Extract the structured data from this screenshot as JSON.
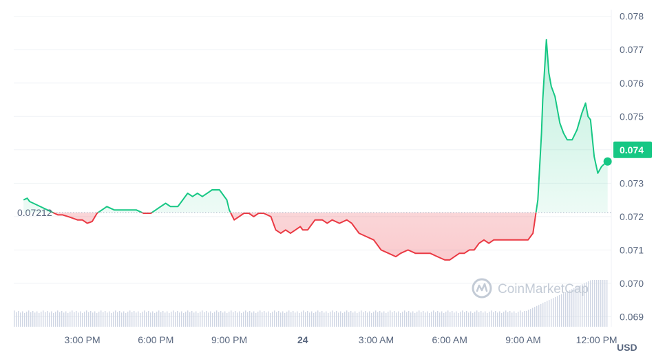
{
  "chart_data": {
    "type": "line",
    "currency": "USD",
    "open_price": 0.07212,
    "open_price_label": "0.07212",
    "current_price": 0.074,
    "current_price_label": "0.074",
    "ylim": [
      0.0687,
      0.0782
    ],
    "y_ticks": [
      "0.078",
      "0.077",
      "0.076",
      "0.075",
      "0.074",
      "0.073",
      "0.072",
      "0.071",
      "0.070",
      "0.069"
    ],
    "y_tick_values": [
      0.078,
      0.077,
      0.076,
      0.075,
      0.074,
      0.073,
      0.072,
      0.071,
      0.07,
      0.069
    ],
    "x_ticks": [
      {
        "label": "3:00 PM",
        "hour": 15,
        "bold": false
      },
      {
        "label": "6:00 PM",
        "hour": 18,
        "bold": false
      },
      {
        "label": "9:00 PM",
        "hour": 21,
        "bold": false
      },
      {
        "label": "24",
        "hour": 24,
        "bold": true
      },
      {
        "label": "3:00 AM",
        "hour": 27,
        "bold": false
      },
      {
        "label": "6:00 AM",
        "hour": 30,
        "bold": false
      },
      {
        "label": "9:00 AM",
        "hour": 33,
        "bold": false
      },
      {
        "label": "12:00 PM",
        "hour": 36,
        "bold": false
      }
    ],
    "xlim_hours": [
      12.2,
      36.6
    ],
    "colors": {
      "up": "#16c784",
      "down": "#ea3943",
      "axis_text": "#58667e",
      "grid": "#eff2f5",
      "volume": "#cfd6e4"
    },
    "series": [
      {
        "x_hours": [
          12.6,
          12.75,
          12.85,
          13.0,
          14.0,
          14.2,
          14.5,
          14.8,
          15.0,
          15.2,
          15.4,
          15.6,
          15.8,
          16.0,
          16.3,
          16.6,
          16.9,
          17.2,
          17.5,
          17.8,
          18.0,
          18.2,
          18.4,
          18.6,
          18.9,
          19.1,
          19.3,
          19.5,
          19.7,
          19.9,
          20.1,
          20.3,
          20.6,
          20.9,
          21.0,
          21.2,
          21.4,
          21.6,
          21.8,
          22.0,
          22.2,
          22.4,
          22.7,
          22.9,
          23.1,
          23.3,
          23.5,
          23.7,
          23.9,
          24.0,
          24.2,
          24.5,
          24.8,
          25.0,
          25.2,
          25.5,
          25.8,
          26.0,
          26.3,
          26.6,
          26.9,
          27.2,
          27.5,
          27.8,
          28.0,
          28.3,
          28.6,
          28.9,
          29.2,
          29.5,
          29.8,
          30.0,
          30.2,
          30.4,
          30.6,
          30.8,
          31.0,
          31.2,
          31.4,
          31.6,
          31.8,
          32.0,
          32.2,
          32.5,
          32.8,
          33.0,
          33.2,
          33.4,
          33.6,
          33.75,
          33.8,
          33.95,
          34.05,
          34.15,
          34.3,
          34.5,
          34.65,
          34.8,
          35.0,
          35.2,
          35.4,
          35.55,
          35.65,
          35.75,
          35.9,
          36.05,
          36.2,
          36.35,
          36.45
        ],
        "y": [
          0.0725,
          0.07255,
          0.07245,
          0.0724,
          0.07205,
          0.07205,
          0.07198,
          0.0719,
          0.0719,
          0.0718,
          0.07185,
          0.0721,
          0.0722,
          0.0723,
          0.0722,
          0.0722,
          0.0722,
          0.0722,
          0.0721,
          0.0721,
          0.0722,
          0.0723,
          0.0724,
          0.0723,
          0.0723,
          0.0725,
          0.0727,
          0.0726,
          0.0727,
          0.0726,
          0.0727,
          0.0728,
          0.0728,
          0.0725,
          0.0722,
          0.0719,
          0.072,
          0.0721,
          0.0721,
          0.072,
          0.0721,
          0.0721,
          0.072,
          0.0716,
          0.0715,
          0.0716,
          0.0715,
          0.0716,
          0.0717,
          0.0716,
          0.0716,
          0.0719,
          0.0719,
          0.0718,
          0.0719,
          0.0718,
          0.0719,
          0.0718,
          0.0715,
          0.0714,
          0.0713,
          0.071,
          0.0709,
          0.0708,
          0.0709,
          0.071,
          0.0709,
          0.0709,
          0.0709,
          0.0708,
          0.0707,
          0.0707,
          0.0708,
          0.0709,
          0.0709,
          0.071,
          0.071,
          0.0712,
          0.0713,
          0.0712,
          0.0713,
          0.0713,
          0.0713,
          0.0713,
          0.0713,
          0.0713,
          0.0713,
          0.0715,
          0.0725,
          0.0745,
          0.0755,
          0.0773,
          0.0763,
          0.0759,
          0.0756,
          0.0748,
          0.0745,
          0.0743,
          0.0743,
          0.0746,
          0.0751,
          0.0754,
          0.075,
          0.0749,
          0.0738,
          0.0733,
          0.0735,
          0.0736,
          0.07365
        ]
      }
    ]
  },
  "watermark": {
    "text": "CoinMarketCap"
  }
}
